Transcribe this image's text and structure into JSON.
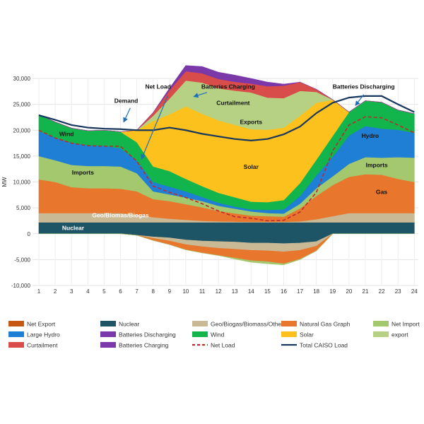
{
  "chart_data": {
    "type": "area",
    "ylabel": "MW",
    "ylim": [
      -10000,
      30000
    ],
    "yticks": [
      -10000,
      -5000,
      0,
      5000,
      10000,
      15000,
      20000,
      25000,
      30000
    ],
    "ytick_labels": [
      "-10,000",
      "-5,000",
      "0",
      "5,000",
      "10,000",
      "15,000",
      "20,000",
      "25,000",
      "30,000"
    ],
    "x": [
      1,
      2,
      3,
      4,
      5,
      6,
      7,
      8,
      9,
      10,
      11,
      12,
      13,
      14,
      15,
      16,
      17,
      18,
      19,
      20,
      21,
      22,
      23,
      24
    ],
    "xtick_labels": [
      "1",
      "2",
      "3",
      "4",
      "5",
      "6",
      "7",
      "8",
      "9",
      "10",
      "11",
      "12",
      "13",
      "14",
      "15",
      "16",
      "17",
      "18",
      "19",
      "20",
      "21",
      "22",
      "23",
      "24"
    ],
    "positive_stack": [
      {
        "name": "Nuclear",
        "color": "#1e5566",
        "values": [
          2200,
          2200,
          2200,
          2200,
          2200,
          2200,
          2200,
          2200,
          2200,
          2200,
          2200,
          2200,
          2200,
          2200,
          2200,
          2200,
          2200,
          2200,
          2200,
          2200,
          2200,
          2200,
          2200,
          2200
        ]
      },
      {
        "name": "Geo/Biogas/Biomass/Other",
        "color": "#c9b994",
        "values": [
          1800,
          1800,
          1800,
          1800,
          1800,
          1800,
          1500,
          1000,
          700,
          500,
          300,
          200,
          150,
          100,
          100,
          100,
          200,
          600,
          1200,
          1800,
          1800,
          1800,
          1800,
          1800
        ]
      },
      {
        "name": "Natural Gas Graph",
        "color": "#e8772d",
        "values": [
          6500,
          6000,
          5000,
          4800,
          4800,
          4700,
          4500,
          3500,
          3400,
          3000,
          2600,
          2000,
          1600,
          1200,
          1100,
          1000,
          2500,
          4500,
          6000,
          7000,
          7500,
          7400,
          6600,
          6000
        ]
      },
      {
        "name": "Net Import",
        "color": "#a3c86e",
        "values": [
          4500,
          4200,
          4300,
          4300,
          4300,
          4300,
          3500,
          1500,
          1300,
          1300,
          1200,
          1000,
          900,
          800,
          600,
          600,
          900,
          1500,
          1700,
          2500,
          3300,
          3300,
          4200,
          4700
        ]
      },
      {
        "name": "Large Hydro",
        "color": "#1f7fd4",
        "values": [
          4800,
          4400,
          4300,
          4000,
          3900,
          3500,
          2500,
          1800,
          1500,
          1200,
          800,
          600,
          400,
          400,
          600,
          800,
          1500,
          2500,
          3800,
          5500,
          6000,
          5600,
          5300,
          4800
        ]
      },
      {
        "name": "Wind",
        "color": "#12b44c",
        "values": [
          3200,
          3000,
          2800,
          2800,
          3000,
          3200,
          3500,
          3000,
          3000,
          2400,
          2100,
          1900,
          1800,
          1500,
          1500,
          1800,
          2500,
          3000,
          4000,
          4500,
          4900,
          5100,
          3800,
          3700
        ]
      },
      {
        "name": "Solar",
        "color": "#fcc11c",
        "values": [
          0,
          0,
          0,
          0,
          0,
          0,
          2300,
          8800,
          11000,
          14000,
          14000,
          14000,
          14000,
          14000,
          14000,
          14000,
          13000,
          11000,
          7000,
          0,
          0,
          0,
          0,
          0
        ]
      },
      {
        "name": "export",
        "color": "#b6d183",
        "values": [
          0,
          0,
          0,
          0,
          0,
          0,
          0,
          1000,
          3000,
          5000,
          6000,
          6200,
          6600,
          7100,
          6200,
          5700,
          4800,
          2100,
          0,
          0,
          0,
          0,
          0,
          0
        ]
      },
      {
        "name": "Curtailment",
        "color": "#d84c4a",
        "values": [
          0,
          0,
          0,
          0,
          0,
          0,
          0,
          600,
          1600,
          1800,
          1800,
          1800,
          1700,
          1700,
          2200,
          2400,
          1700,
          500,
          0,
          0,
          0,
          0,
          0,
          0
        ]
      },
      {
        "name": "Batteries Charging",
        "color": "#7a38a8",
        "values": [
          0,
          0,
          0,
          0,
          0,
          0,
          0,
          0,
          400,
          1100,
          1300,
          1300,
          1300,
          1000,
          800,
          300,
          0,
          0,
          0,
          0,
          0,
          0,
          0,
          0
        ]
      },
      {
        "name": "Batteries Discharging",
        "color": "#7a38a8",
        "values": [
          0,
          0,
          0,
          0,
          0,
          0,
          0,
          0,
          0,
          0,
          0,
          0,
          0,
          0,
          0,
          0,
          0,
          0,
          0,
          0,
          0,
          0,
          0,
          0
        ]
      }
    ],
    "negative_stack": [
      {
        "name": "Nuclear",
        "color": "#1e5566",
        "values": [
          0,
          0,
          0,
          0,
          0,
          0,
          -300,
          -600,
          -800,
          -1200,
          -1400,
          -1500,
          -1600,
          -1800,
          -1800,
          -1900,
          -1800,
          -1500,
          0,
          0,
          0,
          0,
          0,
          0
        ]
      },
      {
        "name": "Geo/Biogas/Biomass/Other",
        "color": "#c9b994",
        "values": [
          0,
          0,
          0,
          0,
          0,
          0,
          0,
          -300,
          -600,
          -900,
          -1100,
          -1300,
          -1400,
          -1400,
          -1500,
          -1600,
          -1400,
          -900,
          0,
          0,
          0,
          0,
          0,
          0
        ]
      },
      {
        "name": "Natural Gas Graph",
        "color": "#e8772d",
        "values": [
          0,
          0,
          0,
          0,
          0,
          0,
          0,
          -400,
          -700,
          -1000,
          -1200,
          -1400,
          -1700,
          -2000,
          -2100,
          -2300,
          -1700,
          -900,
          0,
          0,
          0,
          0,
          0,
          0
        ]
      },
      {
        "name": "Net Import",
        "color": "#a3c86e",
        "values": [
          0,
          0,
          0,
          0,
          0,
          0,
          0,
          0,
          0,
          0,
          0,
          0,
          -200,
          -300,
          -400,
          -200,
          -100,
          0,
          0,
          0,
          0,
          0,
          0,
          0
        ]
      }
    ],
    "lines": [
      {
        "name": "Total CAISO Load",
        "color": "#17375e",
        "style": "solid",
        "values": [
          22900,
          22000,
          21000,
          20500,
          20300,
          20200,
          20000,
          20000,
          20500,
          20000,
          19300,
          18800,
          18300,
          18000,
          18300,
          19200,
          20700,
          23300,
          25300,
          26300,
          26600,
          26600,
          25000,
          23500
        ]
      },
      {
        "name": "Net Load",
        "color": "#c0282d",
        "style": "dashed",
        "values": [
          20000,
          18500,
          17500,
          17000,
          16900,
          16900,
          14000,
          9200,
          8000,
          7000,
          5800,
          4400,
          3300,
          3000,
          2500,
          2600,
          4200,
          8000,
          16000,
          21000,
          22600,
          22400,
          21000,
          19500
        ]
      }
    ],
    "annotations": [
      {
        "text": "Demand",
        "x": 6.35,
        "y": 25300,
        "color": "#111111"
      },
      {
        "text": "Net Load",
        "x": 8.3,
        "y": 28000,
        "color": "#111111"
      },
      {
        "text": "Batteries Charging",
        "x": 12.6,
        "y": 28000,
        "color": "#111111"
      },
      {
        "text": "Batteries Discharging",
        "x": 20.9,
        "y": 28000,
        "color": "#111111"
      },
      {
        "text": "Curtailment",
        "x": 12.9,
        "y": 24900,
        "color": "#111111"
      },
      {
        "text": "Exports",
        "x": 14.0,
        "y": 21200,
        "color": "#111111"
      },
      {
        "text": "Wind",
        "x": 2.7,
        "y": 18900,
        "color": "#111111"
      },
      {
        "text": "Hydro",
        "x": 21.3,
        "y": 18500,
        "color": "#111111"
      },
      {
        "text": "Imports",
        "x": 3.7,
        "y": 11400,
        "color": "#111111"
      },
      {
        "text": "Imports",
        "x": 21.7,
        "y": 12900,
        "color": "#111111"
      },
      {
        "text": "Solar",
        "x": 14.0,
        "y": 12500,
        "color": "#111111"
      },
      {
        "text": "Gas",
        "x": 22.0,
        "y": 7700,
        "color": "#111111"
      },
      {
        "text": "Geo/Biomas/Biogas",
        "x": 6.0,
        "y": 3200,
        "color": "#ffffff"
      },
      {
        "text": "Nuclear",
        "x": 3.1,
        "y": 700,
        "color": "#ffffff"
      }
    ],
    "legend": {
      "placement": "bottom",
      "entries": [
        {
          "name": "Net Export",
          "color": "#c65911",
          "kind": "swatch"
        },
        {
          "name": "Nuclear",
          "color": "#1e5566",
          "kind": "swatch"
        },
        {
          "name": "Geo/Biogas/Biomass/Other",
          "color": "#c9b994",
          "kind": "swatch"
        },
        {
          "name": "Natural Gas Graph",
          "color": "#e8772d",
          "kind": "swatch"
        },
        {
          "name": "Net Import",
          "color": "#a3c86e",
          "kind": "swatch"
        },
        {
          "name": "Large Hydro",
          "color": "#1f7fd4",
          "kind": "swatch"
        },
        {
          "name": "Batteries Discharging",
          "color": "#7a38a8",
          "kind": "swatch"
        },
        {
          "name": "Wind",
          "color": "#12b44c",
          "kind": "swatch"
        },
        {
          "name": "Solar",
          "color": "#fcc11c",
          "kind": "swatch"
        },
        {
          "name": "export",
          "color": "#b6d183",
          "kind": "swatch"
        },
        {
          "name": "Curtailment",
          "color": "#d84c4a",
          "kind": "swatch"
        },
        {
          "name": "Batteries Charging",
          "color": "#7a38a8",
          "kind": "swatch"
        },
        {
          "name": "Net Load",
          "color": "#c0282d",
          "kind": "dashed"
        },
        {
          "name": "Total CAISO Load",
          "color": "#17375e",
          "kind": "line"
        }
      ]
    },
    "grid": true
  }
}
